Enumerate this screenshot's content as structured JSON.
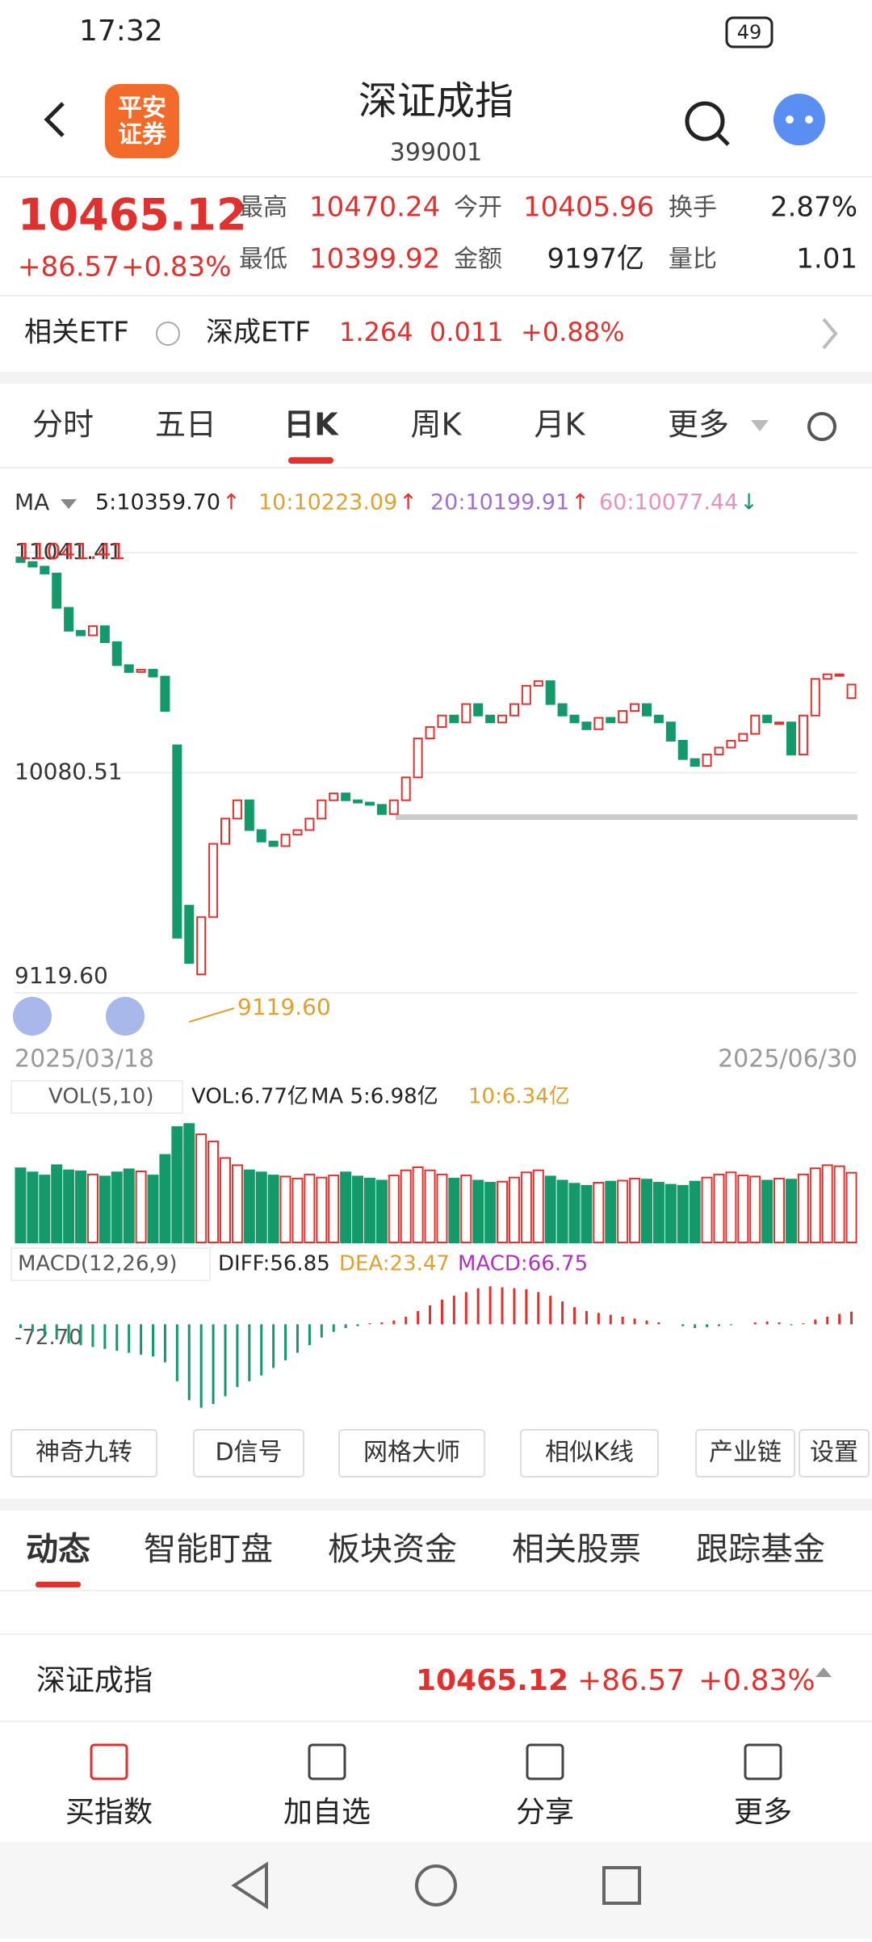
{
  "status_bar": {
    "time": "17:32",
    "battery": "49"
  },
  "header": {
    "logo": [
      "平安",
      "证券"
    ],
    "title": "深证成指",
    "code": "399001"
  },
  "quote": {
    "price": "10465.12",
    "change": "+86.57",
    "change_pct": "+0.83%",
    "stats": [
      [
        {
          "label": "最高",
          "value": "10470.24",
          "color": "#e0312f"
        },
        {
          "label": "今开",
          "value": "10405.96",
          "color": "#e0312f"
        },
        {
          "label": "换手",
          "value": "2.87%",
          "color": "#222222"
        }
      ],
      [
        {
          "label": "最低",
          "value": "10399.92",
          "color": "#e0312f"
        },
        {
          "label": "金额",
          "value": "9197亿",
          "color": "#222222"
        },
        {
          "label": "量比",
          "value": "1.01",
          "color": "#222222"
        }
      ]
    ]
  },
  "etf": {
    "label": "相关ETF",
    "name": "深成ETF",
    "price": "1.264",
    "change": "0.011",
    "change_pct": "+0.88%"
  },
  "tabs": [
    "分时",
    "五日",
    "日K",
    "周K",
    "月K",
    "更多"
  ],
  "active_tab": 2,
  "ma_legend": {
    "label": "MA",
    "items": [
      {
        "text": "5:10359.70",
        "arrow": "↑",
        "color": "#222222"
      },
      {
        "text": "10:10223.09",
        "arrow": "↑",
        "color": "#e0a030"
      },
      {
        "text": "20:10199.91",
        "arrow": "↑",
        "color": "#a070d0"
      },
      {
        "text": "60:10077.44",
        "arrow": "↓",
        "color": "#e890c0"
      }
    ]
  },
  "kline": {
    "type": "candlestick",
    "start_date": "2025/03/18",
    "end_date": "2025/06/30",
    "high_label": "11041.41",
    "low_label": "9119.60",
    "ylim": [
      9119.6,
      11041.41
    ],
    "yticks": [
      {
        "value": 9119.6,
        "label": "9119.60"
      },
      10080.51,
      11041.41
    ],
    "up_color": "#e0312f",
    "down_color": "#149a6a",
    "open": [
      11020,
      11000,
      10980,
      10950,
      10800,
      10700,
      10680,
      10720,
      10650,
      10550,
      10520,
      10530,
      10500,
      10200,
      9500,
      9200,
      9450,
      9770,
      9880,
      9960,
      9830,
      9780,
      9760,
      9810,
      9830,
      9880,
      9960,
      9990,
      9960,
      9950,
      9940,
      9900,
      9960,
      10060,
      10230,
      10280,
      10330,
      10300,
      10380,
      10330,
      10300,
      10330,
      10380,
      10460,
      10480,
      10380,
      10330,
      10300,
      10270,
      10320,
      10300,
      10350,
      10380,
      10330,
      10300,
      10220,
      10140,
      10110,
      10160,
      10190,
      10220,
      10250,
      10330,
      10300,
      10300,
      10160,
      10330,
      10490,
      10510,
      10405.96
    ],
    "close": [
      11000,
      10980,
      10950,
      10800,
      10700,
      10680,
      10720,
      10650,
      10550,
      10520,
      10530,
      10500,
      10350,
      9360,
      9250,
      9450,
      9770,
      9880,
      9960,
      9830,
      9780,
      9760,
      9810,
      9830,
      9880,
      9960,
      9990,
      9960,
      9950,
      9940,
      9900,
      9960,
      10060,
      10230,
      10280,
      10330,
      10300,
      10380,
      10330,
      10300,
      10330,
      10380,
      10460,
      10480,
      10380,
      10330,
      10300,
      10270,
      10320,
      10300,
      10350,
      10380,
      10330,
      10300,
      10220,
      10140,
      10110,
      10160,
      10190,
      10220,
      10250,
      10330,
      10300,
      10300,
      10160,
      10330,
      10490,
      10510,
      10510,
      10465.12
    ]
  },
  "volume": {
    "type": "bar",
    "legend": "VOL(5,10)",
    "vol": "VOL:6.77亿",
    "ma5": "MA 5:6.98亿",
    "ma10": "10:6.34亿",
    "ylim": [
      0,
      12
    ],
    "values": [
      7.2,
      6.8,
      6.5,
      7.5,
      7.0,
      6.9,
      6.6,
      6.4,
      6.8,
      7.1,
      6.9,
      6.5,
      8.5,
      11.2,
      11.5,
      10.5,
      9.8,
      8.2,
      7.5,
      7.0,
      6.8,
      6.5,
      6.4,
      6.2,
      6.6,
      6.3,
      6.5,
      6.8,
      6.4,
      6.2,
      6.0,
      6.5,
      7.0,
      7.3,
      7.0,
      6.6,
      6.2,
      6.5,
      6.0,
      5.8,
      5.9,
      6.3,
      6.8,
      7.0,
      6.4,
      6.0,
      5.7,
      5.5,
      5.8,
      5.9,
      6.0,
      6.2,
      6.1,
      5.8,
      5.6,
      5.5,
      5.9,
      6.3,
      6.6,
      6.8,
      6.5,
      6.4,
      6.0,
      6.2,
      6.1,
      6.6,
      7.2,
      7.5,
      7.4,
      6.77
    ]
  },
  "macd": {
    "type": "bar",
    "legend": "MACD(12,26,9)",
    "diff": "DIFF:56.85",
    "dea": "DEA:23.47",
    "macd": "MACD:66.75",
    "ylim": [
      -450,
      210
    ],
    "yticks": [
      {
        "value": -72.7,
        "label": "-72.70"
      }
    ],
    "values": [
      -20,
      -40,
      -60,
      -80,
      -100,
      -110,
      -120,
      -130,
      -140,
      -150,
      -160,
      -170,
      -200,
      -300,
      -400,
      -440,
      -420,
      -380,
      -330,
      -300,
      -270,
      -230,
      -190,
      -150,
      -110,
      -70,
      -40,
      -20,
      -10,
      5,
      10,
      20,
      40,
      70,
      100,
      130,
      150,
      170,
      190,
      200,
      195,
      190,
      185,
      170,
      150,
      120,
      90,
      70,
      60,
      50,
      40,
      30,
      20,
      10,
      0,
      -10,
      -20,
      -15,
      -10,
      -5,
      0,
      10,
      15,
      10,
      -5,
      5,
      25,
      40,
      55,
      66.75
    ]
  },
  "tools": [
    "神奇九转",
    "D信号",
    "网格大师",
    "相似K线",
    "产业链",
    "设置"
  ],
  "sub_tabs": [
    "动态",
    "智能盯盘",
    "板块资金",
    "相关股票",
    "跟踪基金"
  ],
  "summary": {
    "name": "深证成指",
    "price": "10465.12",
    "change": "+86.57",
    "change_pct": "+0.83%"
  },
  "bottom_bar": [
    "买指数",
    "加自选",
    "分享",
    "更多"
  ]
}
